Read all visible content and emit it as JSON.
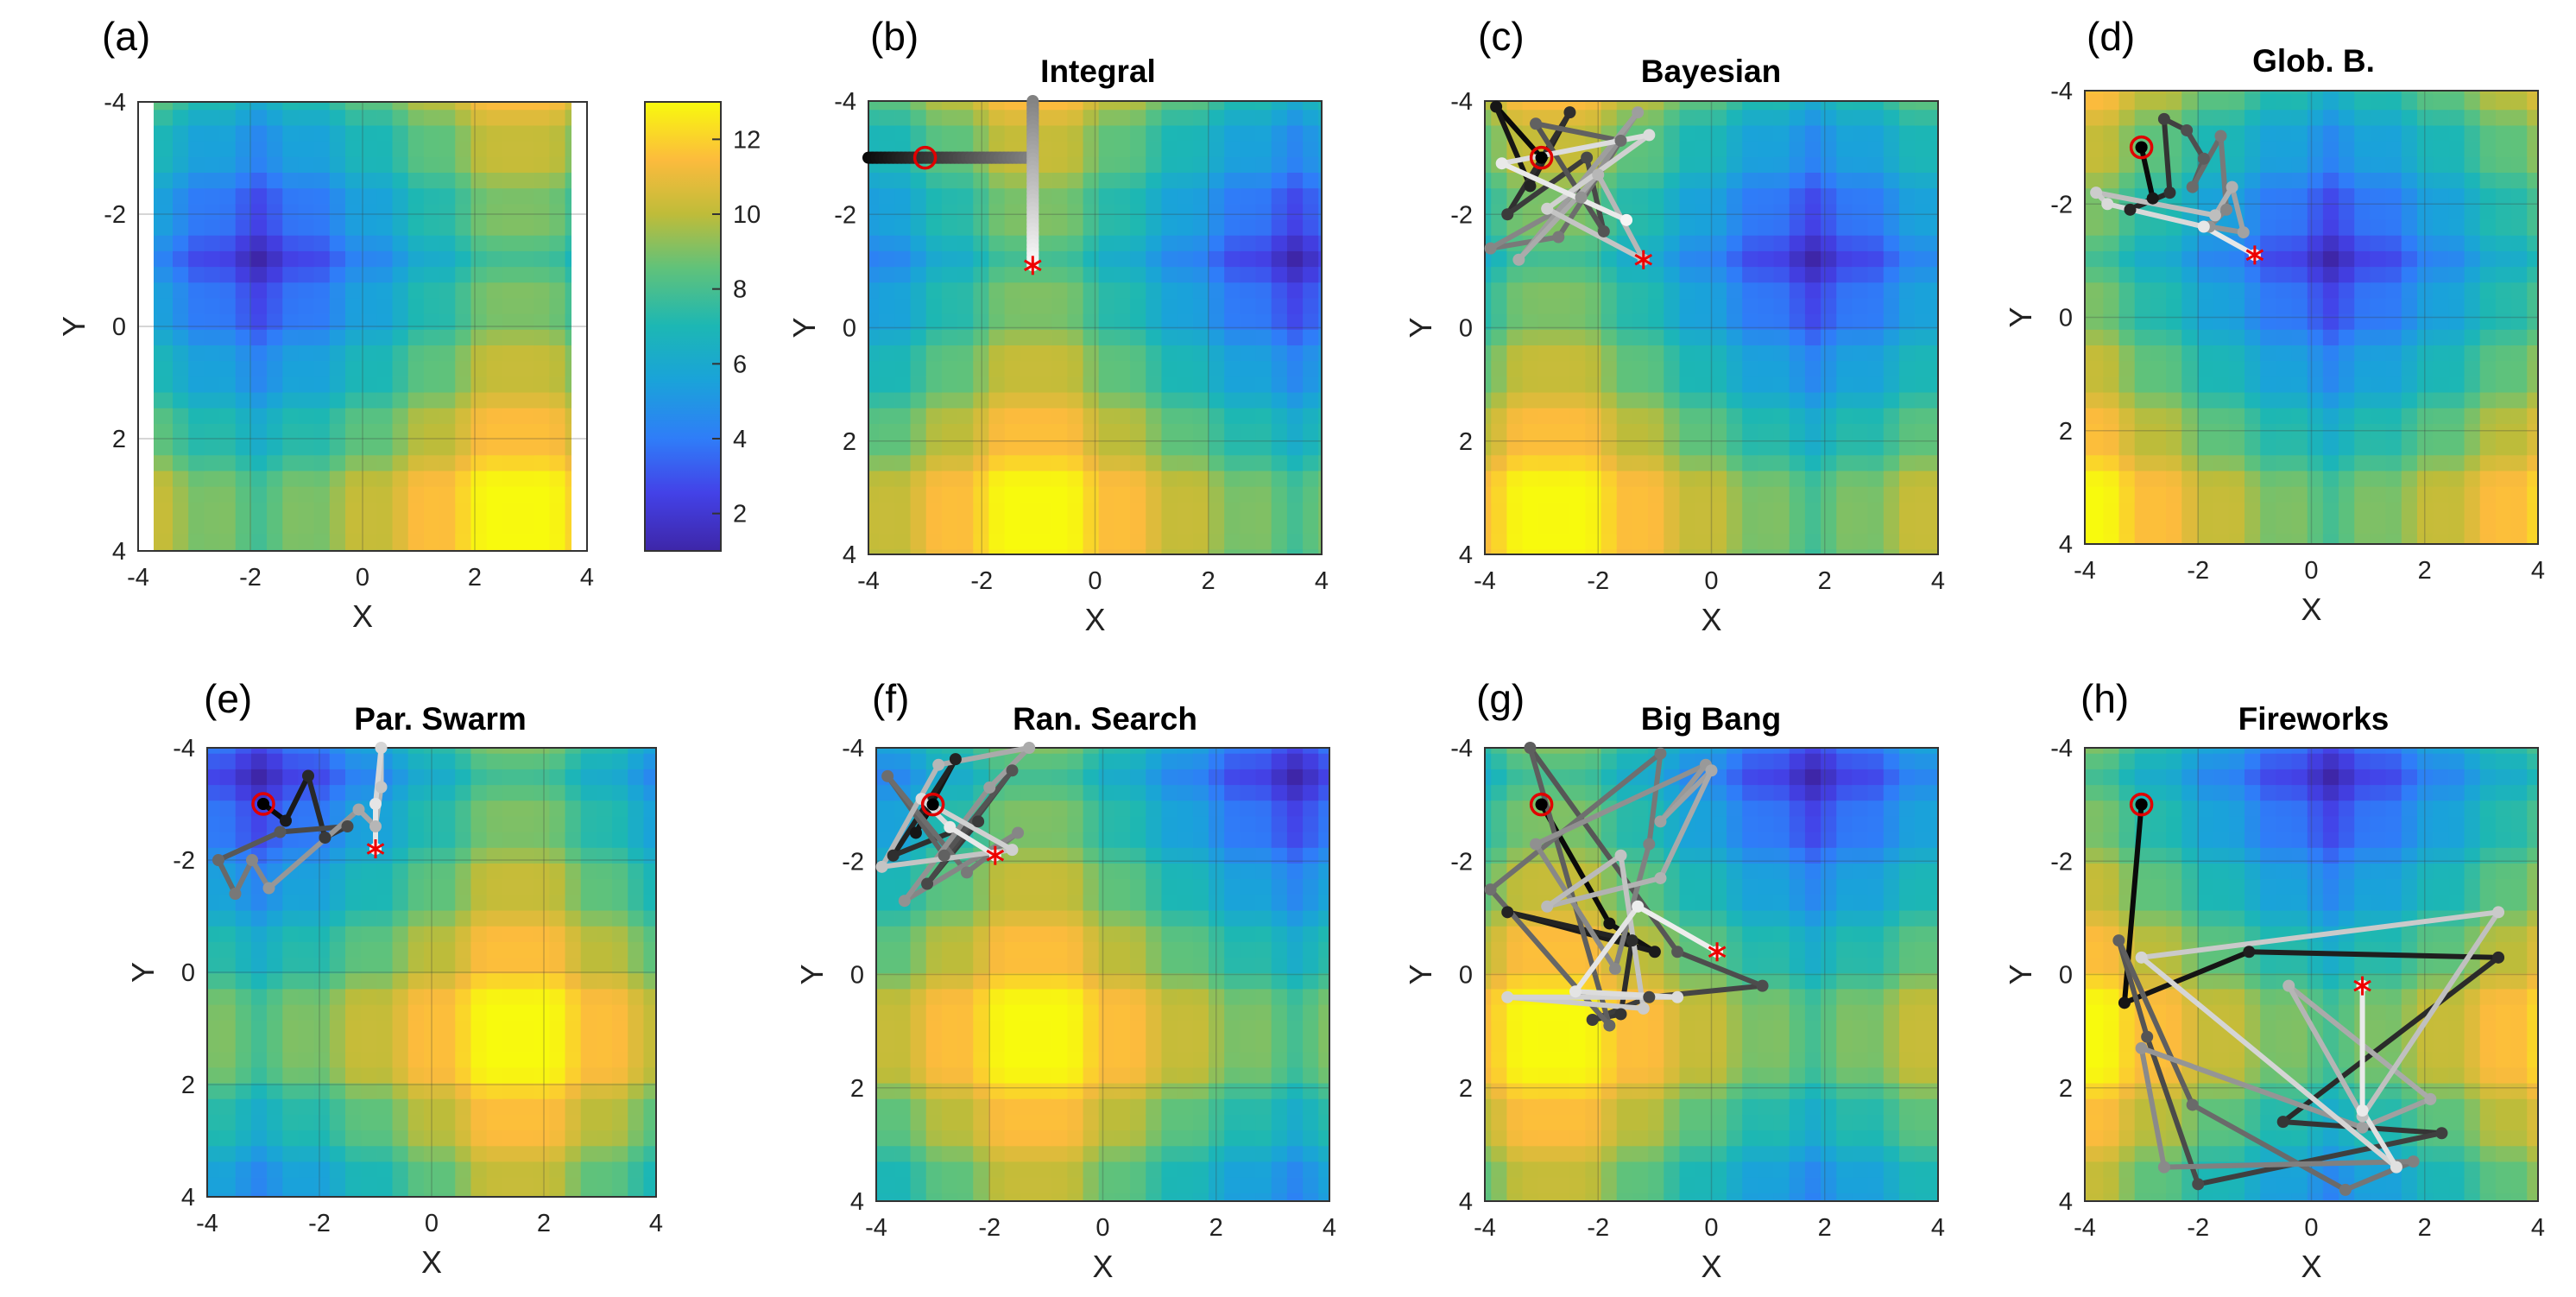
{
  "chart_data": {
    "type": "scatter",
    "surface": "Rastrigin-like objective heatmap",
    "colormap": "parula",
    "axis": {
      "xlim": [
        -4,
        4
      ],
      "ylim": [
        4,
        -4
      ],
      "ticks": [
        -4,
        -2,
        0,
        2,
        4
      ],
      "xlabel": "X",
      "ylabel": "Y",
      "grid": true
    },
    "colorbar": {
      "ticks": [
        2,
        4,
        6,
        8,
        10,
        12
      ],
      "range": [
        1,
        13
      ]
    },
    "start_point": [
      -3,
      -3
    ],
    "panels": [
      {
        "label": "(a)",
        "title": "",
        "series": [],
        "best": null
      },
      {
        "label": "(b)",
        "title": "Integral",
        "series": [
          {
            "segments": [
              [
                [
                  -4,
                  -3
                ],
                [
                  -1.1,
                  -3
                ]
              ],
              [
                [
                  -1.1,
                  -4
                ],
                [
                  -1.1,
                  -1.1
                ]
              ]
            ]
          }
        ],
        "best": [
          -1.1,
          -1.1
        ]
      },
      {
        "label": "(c)",
        "title": "Bayesian",
        "series": [
          {
            "points": [
              [
                -3,
                -3
              ],
              [
                -3.8,
                -3.9
              ],
              [
                -3.2,
                -2.5
              ],
              [
                -2.5,
                -3.8
              ],
              [
                -3.6,
                -2
              ],
              [
                -2.2,
                -3
              ],
              [
                -1.9,
                -1.7
              ],
              [
                -3.1,
                -3.6
              ],
              [
                -1.6,
                -3.3
              ],
              [
                -2.7,
                -1.6
              ],
              [
                -3.9,
                -1.4
              ],
              [
                -2.3,
                -2.3
              ],
              [
                -1.3,
                -3.8
              ],
              [
                -3.4,
                -1.2
              ],
              [
                -2,
                -2.7
              ],
              [
                -1.2,
                -1.2
              ],
              [
                -2.9,
                -2.1
              ],
              [
                -1.1,
                -3.4
              ],
              [
                -3.7,
                -2.9
              ],
              [
                -1.5,
                -1.9
              ]
            ]
          }
        ],
        "best": [
          -1.2,
          -1.2
        ]
      },
      {
        "label": "(d)",
        "title": "Glob. B.",
        "series": [
          {
            "points": [
              [
                -3,
                -3
              ],
              [
                -2.8,
                -2.1
              ],
              [
                -3.2,
                -1.9
              ],
              [
                -2.5,
                -2.2
              ],
              [
                -2.6,
                -3.5
              ],
              [
                -2.2,
                -3.3
              ],
              [
                -1.9,
                -2.8
              ],
              [
                -2.1,
                -2.3
              ],
              [
                -1.6,
                -3.2
              ],
              [
                -1.5,
                -1.9
              ],
              [
                -1.8,
                -1.6
              ],
              [
                -1.2,
                -1.5
              ],
              [
                -1.4,
                -2.3
              ],
              [
                -1.7,
                -1.8
              ],
              [
                -3.8,
                -2.2
              ],
              [
                -3.6,
                -2
              ],
              [
                -1.9,
                -1.6
              ],
              [
                -1,
                -1.1
              ]
            ]
          }
        ],
        "best": [
          -1,
          -1.1
        ]
      },
      {
        "label": "(e)",
        "title": "Par. Swarm",
        "series": [
          {
            "points": [
              [
                -3,
                -3
              ],
              [
                -2.6,
                -2.7
              ],
              [
                -2.2,
                -3.5
              ],
              [
                -1.9,
                -2.4
              ],
              [
                -1.5,
                -2.6
              ],
              [
                -2.7,
                -2.5
              ],
              [
                -3.8,
                -2
              ],
              [
                -3.5,
                -1.4
              ],
              [
                -3.2,
                -2
              ],
              [
                -2.9,
                -1.5
              ],
              [
                -1.3,
                -2.9
              ],
              [
                -1,
                -2.6
              ],
              [
                -0.9,
                -3.3
              ],
              [
                -0.9,
                -4
              ],
              [
                -1,
                -3
              ],
              [
                -1,
                -2.2
              ]
            ]
          }
        ],
        "best": [
          -1,
          -2.2
        ]
      },
      {
        "label": "(f)",
        "title": "Ran. Search",
        "series": [
          {
            "points": [
              [
                -3,
                -3
              ],
              [
                -3.3,
                -2.5
              ],
              [
                -2.6,
                -3.8
              ],
              [
                -3.7,
                -2.1
              ],
              [
                -2.2,
                -2.7
              ],
              [
                -3.1,
                -1.6
              ],
              [
                -1.6,
                -3.6
              ],
              [
                -2.8,
                -2.1
              ],
              [
                -3.8,
                -3.5
              ],
              [
                -2.4,
                -1.8
              ],
              [
                -1.5,
                -2.5
              ],
              [
                -3.5,
                -1.3
              ],
              [
                -2,
                -3.3
              ],
              [
                -1.3,
                -4
              ],
              [
                -2.9,
                -3.7
              ],
              [
                -3.9,
                -1.9
              ],
              [
                -1.6,
                -2.2
              ],
              [
                -3.2,
                -3.1
              ],
              [
                -2.7,
                -2.6
              ],
              [
                -1.9,
                -2.1
              ]
            ]
          }
        ],
        "best": [
          -1.9,
          -2.1
        ]
      },
      {
        "label": "(g)",
        "title": "Big Bang",
        "series": [
          {
            "points": [
              [
                -3,
                -3
              ],
              [
                -1.8,
                -0.9
              ],
              [
                -1,
                -0.4
              ],
              [
                -3.6,
                -1.1
              ],
              [
                -1.4,
                -0.6
              ],
              [
                -1.6,
                0.7
              ],
              [
                -2.1,
                0.8
              ],
              [
                -1.1,
                0.4
              ],
              [
                0.9,
                0.2
              ],
              [
                -0.6,
                -0.4
              ],
              [
                -3.2,
                -4
              ],
              [
                -1.8,
                0.9
              ],
              [
                -3.9,
                -1.5
              ],
              [
                -0.9,
                -3.9
              ],
              [
                -1.1,
                -2.3
              ],
              [
                -1.7,
                -0.1
              ],
              [
                -3.1,
                -2.3
              ],
              [
                -0.1,
                -3.7
              ],
              [
                -0.9,
                -2.7
              ],
              [
                0,
                -3.6
              ],
              [
                -0.9,
                -1.7
              ],
              [
                -2.9,
                -1.2
              ],
              [
                -1.6,
                -2.1
              ],
              [
                -1.2,
                0.6
              ],
              [
                -3.6,
                0.4
              ],
              [
                -0.6,
                0.4
              ],
              [
                -2.4,
                0.3
              ],
              [
                -1.3,
                -1.2
              ],
              [
                0.1,
                -0.4
              ]
            ]
          }
        ],
        "best": [
          0.1,
          -0.4
        ]
      },
      {
        "label": "(h)",
        "title": "Fireworks",
        "series": [
          {
            "points": [
              [
                -3,
                -3
              ],
              [
                -3.3,
                0.5
              ],
              [
                -1.1,
                -0.4
              ],
              [
                3.3,
                -0.3
              ],
              [
                -0.5,
                2.6
              ],
              [
                2.3,
                2.8
              ],
              [
                -2,
                3.7
              ],
              [
                -2.9,
                1.1
              ],
              [
                -3.4,
                -0.6
              ],
              [
                -2.1,
                2.3
              ],
              [
                0.6,
                3.8
              ],
              [
                1.8,
                3.3
              ],
              [
                -2.6,
                3.4
              ],
              [
                -3,
                1.3
              ],
              [
                0.9,
                2.7
              ],
              [
                2.1,
                2.2
              ],
              [
                -0.4,
                0.2
              ],
              [
                0.9,
                2.5
              ],
              [
                3.3,
                -1.1
              ],
              [
                -3,
                -0.3
              ],
              [
                1.5,
                3.4
              ],
              [
                0.9,
                2.4
              ],
              [
                0.9,
                0.2
              ]
            ]
          }
        ],
        "best": [
          0.9,
          0.2
        ]
      }
    ]
  }
}
